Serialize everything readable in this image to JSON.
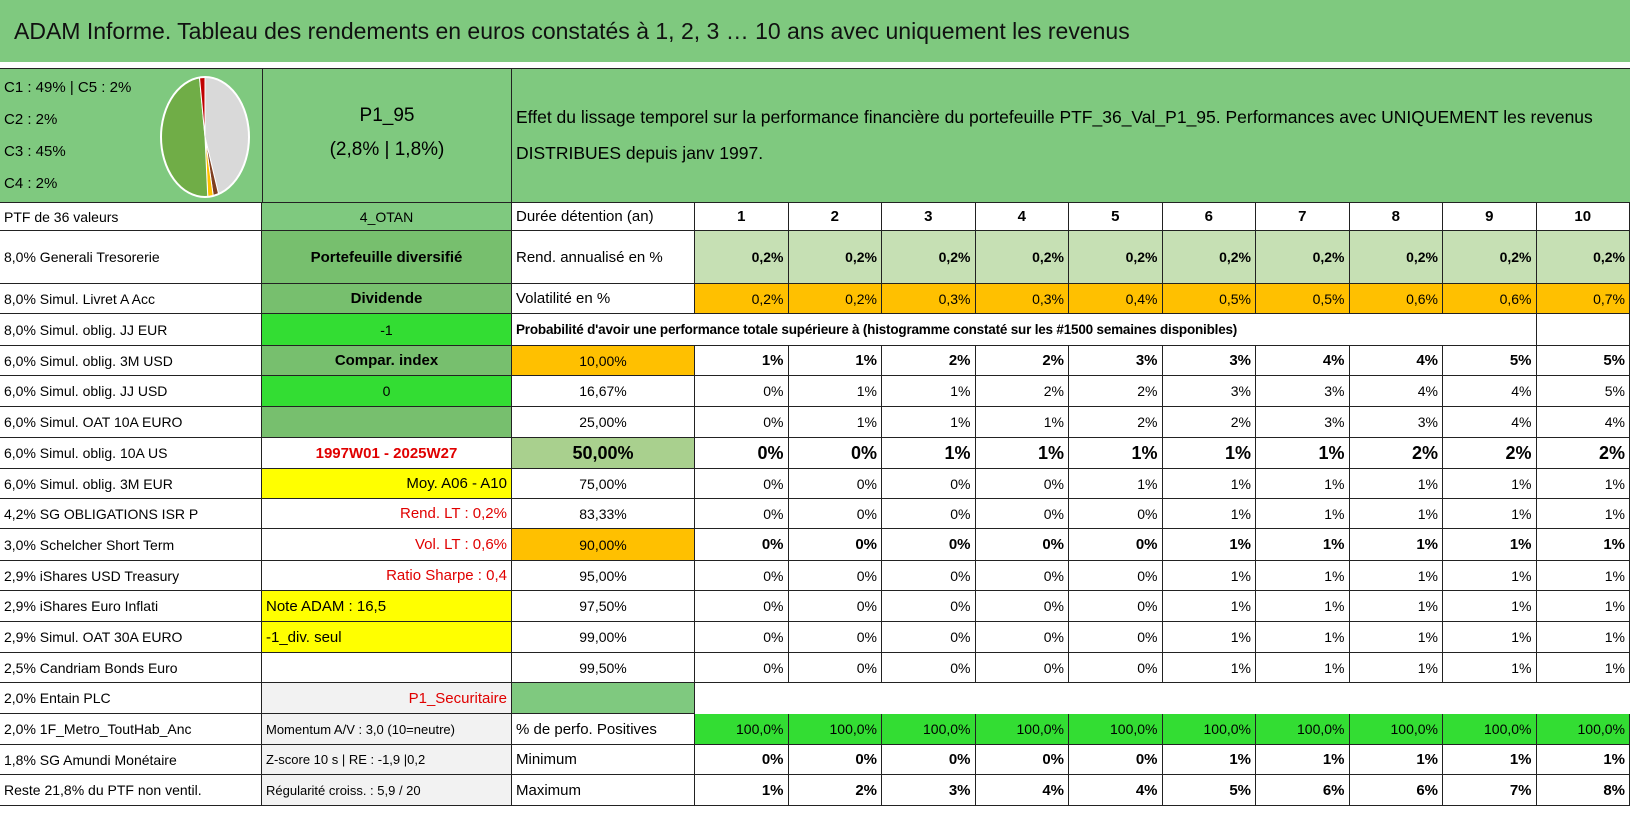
{
  "header": {
    "title": "ADAM Informe. Tableau des rendements en euros constatés à 1, 2, 3 … 10 ans avec uniquement les revenus"
  },
  "summary": {
    "pie_legend": [
      "C1 : 49% | C5 : 2%",
      "C2 : 2%",
      "C3 : 45%",
      "C4 : 2%"
    ],
    "pie_values": [
      45,
      2,
      2,
      49,
      2
    ],
    "pie_colors": [
      "#d9d9d9",
      "#7f3f1f",
      "#ffc000",
      "#70ad47",
      "#c00000"
    ],
    "portfolio": "P1_95",
    "portfolio_stats": "(2,8% | 1,8%)",
    "description": "Effet du lissage temporel sur la performance financière du portefeuille PTF_36_Val_P1_95. Performances avec UNIQUEMENT les revenus DISTRIBUES depuis janv 1997."
  },
  "table": {
    "rows": [
      [
        "PTF de 36 valeurs",
        "4_OTAN",
        "Durée détention (an)",
        "1",
        "2",
        "3",
        "4",
        "5",
        "6",
        "7",
        "8",
        "9",
        "10"
      ],
      [
        "8,0% Generali Tresorerie",
        "Portefeuille diversifié",
        "Rend. annualisé en %",
        "0,2%",
        "0,2%",
        "0,2%",
        "0,2%",
        "0,2%",
        "0,2%",
        "0,2%",
        "0,2%",
        "0,2%",
        "0,2%"
      ],
      [
        "8,0% Simul. Livret A Acc",
        "Dividende",
        "Volatilité en %",
        "0,2%",
        "0,2%",
        "0,3%",
        "0,3%",
        "0,4%",
        "0,5%",
        "0,5%",
        "0,6%",
        "0,6%",
        "0,7%"
      ],
      [
        "8,0% Simul. oblig. JJ EUR",
        "-1",
        "Probabilité d'avoir une performance totale supérieure à (histogramme constaté sur les #1500 semaines disponibles)"
      ],
      [
        "6,0% Simul. oblig. 3M USD",
        "Compar. index",
        "10,00%",
        "1%",
        "1%",
        "2%",
        "2%",
        "3%",
        "3%",
        "4%",
        "4%",
        "5%",
        "5%"
      ],
      [
        "6,0% Simul. oblig. JJ USD",
        "0",
        "16,67%",
        "0%",
        "1%",
        "1%",
        "2%",
        "2%",
        "3%",
        "3%",
        "4%",
        "4%",
        "5%"
      ],
      [
        "6,0% Simul. OAT 10A EURO",
        null,
        "25,00%",
        "0%",
        "1%",
        "1%",
        "1%",
        "2%",
        "2%",
        "3%",
        "3%",
        "4%",
        "4%"
      ],
      [
        "6,0% Simul. oblig. 10A US",
        "1997W01 - 2025W27",
        "50,00%",
        "0%",
        "0%",
        "1%",
        "1%",
        "1%",
        "1%",
        "1%",
        "2%",
        "2%",
        "2%"
      ],
      [
        "6,0% Simul. oblig. 3M EUR",
        "Moy. A06 - A10",
        "75,00%",
        "0%",
        "0%",
        "0%",
        "0%",
        "1%",
        "1%",
        "1%",
        "1%",
        "1%",
        "1%"
      ],
      [
        "4,2% SG OBLIGATIONS ISR P",
        "Rend. LT : 0,2%",
        "83,33%",
        "0%",
        "0%",
        "0%",
        "0%",
        "0%",
        "1%",
        "1%",
        "1%",
        "1%",
        "1%"
      ],
      [
        "3,0% Schelcher Short Term",
        "Vol. LT : 0,6%",
        "90,00%",
        "0%",
        "0%",
        "0%",
        "0%",
        "0%",
        "1%",
        "1%",
        "1%",
        "1%",
        "1%"
      ],
      [
        "2,9% iShares USD Treasury",
        "Ratio Sharpe : 0,4",
        "95,00%",
        "0%",
        "0%",
        "0%",
        "0%",
        "0%",
        "1%",
        "1%",
        "1%",
        "1%",
        "1%"
      ],
      [
        "2,9% iShares Euro Inflati",
        "Note ADAM : 16,5",
        "97,50%",
        "0%",
        "0%",
        "0%",
        "0%",
        "0%",
        "1%",
        "1%",
        "1%",
        "1%",
        "1%"
      ],
      [
        "2,9% Simul. OAT 30A EURO",
        "-1_div. seul",
        "99,00%",
        "0%",
        "0%",
        "0%",
        "0%",
        "0%",
        "1%",
        "1%",
        "1%",
        "1%",
        "1%"
      ],
      [
        "2,5% Candriam Bonds Euro",
        null,
        "99,50%",
        "0%",
        "0%",
        "0%",
        "0%",
        "0%",
        "1%",
        "1%",
        "1%",
        "1%",
        "1%"
      ],
      [
        "2,0% Entain PLC",
        "P1_Securitaire",
        null
      ],
      [
        "2,0% 1F_Metro_ToutHab_Anc",
        "Momentum A/V : 3,0 (10=neutre)",
        "% de perfo. Positives",
        "100,0%",
        "100,0%",
        "100,0%",
        "100,0%",
        "100,0%",
        "100,0%",
        "100,0%",
        "100,0%",
        "100,0%",
        "100,0%"
      ],
      [
        "1,8% SG Amundi Monétaire",
        "Z-score 10 s | RE : -1,9 |0,2",
        "Minimum",
        "0%",
        "0%",
        "0%",
        "0%",
        "0%",
        "1%",
        "1%",
        "1%",
        "1%",
        "1%"
      ],
      [
        "Reste 21,8% du PTF non ventil.",
        "Régularité croiss. : 5,9 / 20",
        "Maximum",
        "1%",
        "2%",
        "3%",
        "4%",
        "4%",
        "5%",
        "6%",
        "6%",
        "7%",
        "8%"
      ]
    ]
  }
}
